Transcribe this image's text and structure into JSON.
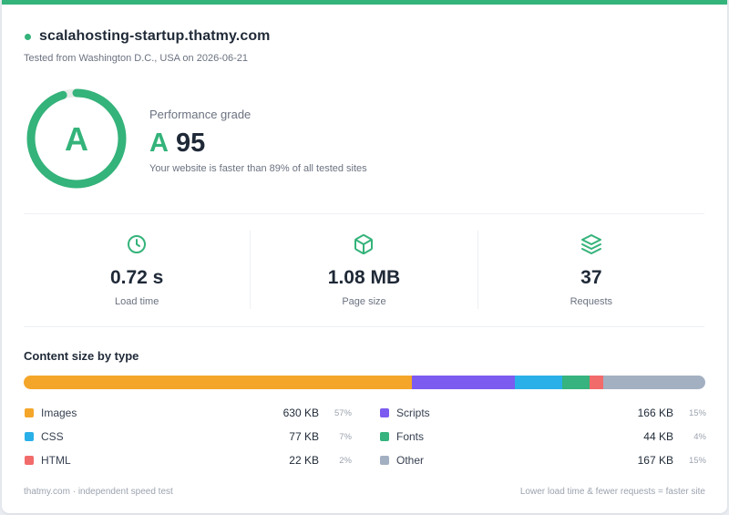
{
  "header": {
    "site": "scalahosting-startup.thatmy.com",
    "tested_text": "Tested from Washington D.C., USA on 2026-06-21"
  },
  "grade": {
    "letter": "A",
    "label": "Performance grade",
    "score_letter": "A",
    "score": "95",
    "score_fraction": 0.95,
    "faster_text": "Your website is faster than 89% of all tested sites",
    "color": "#34b37a"
  },
  "stats": [
    {
      "icon": "clock-icon",
      "value": "0.72 s",
      "label": "Load time"
    },
    {
      "icon": "box-icon",
      "value": "1.08 MB",
      "label": "Page size"
    },
    {
      "icon": "layers-icon",
      "value": "37",
      "label": "Requests"
    }
  ],
  "content": {
    "title": "Content size by type",
    "types": [
      {
        "name": "Images",
        "size": "630 KB",
        "percent": "57%",
        "share": 57,
        "color": "#f4a62a"
      },
      {
        "name": "Scripts",
        "size": "166 KB",
        "percent": "15%",
        "share": 15,
        "color": "#7c5cf0"
      },
      {
        "name": "CSS",
        "size": "77 KB",
        "percent": "7%",
        "share": 7,
        "color": "#2ab0e8"
      },
      {
        "name": "Fonts",
        "size": "44 KB",
        "percent": "4%",
        "share": 4,
        "color": "#36b37e"
      },
      {
        "name": "HTML",
        "size": "22 KB",
        "percent": "2%",
        "share": 2,
        "color": "#f26b6b"
      },
      {
        "name": "Other",
        "size": "167 KB",
        "percent": "15%",
        "share": 15,
        "color": "#a3b0c2"
      }
    ]
  },
  "footer": {
    "left": "thatmy.com · independent speed test",
    "right": "Lower load time & fewer requests = faster site"
  }
}
